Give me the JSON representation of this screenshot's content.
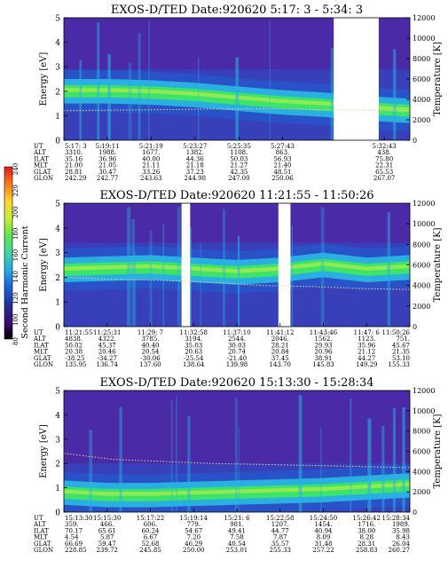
{
  "cbar": {
    "label": "Second Harmonic Current",
    "ticks": [
      "240",
      "220",
      "200",
      "180",
      "160",
      "140",
      "120",
      "100",
      "80"
    ],
    "colors": [
      "#000000",
      "#3b0f70",
      "#1f2f9c",
      "#1a64d8",
      "#22a9e6",
      "#3fd6a3",
      "#58e84e",
      "#c9ee34",
      "#ffd52e",
      "#ff7a1a",
      "#e21b1b"
    ]
  },
  "palette": {
    "background": "#4a2aa6",
    "blue": "#2a52c8",
    "cyan": "#2ab0e0",
    "green": "#3ee36a",
    "yellow": "#d6f03c",
    "gap": "#ffffff",
    "dotted": "#f0c9a0"
  },
  "chart_data": [
    {
      "type": "heatmap",
      "title": "EXOS-D/TED   Date:920620  5:17: 3 - 5:34: 3",
      "ylabel": "Energy [eV]",
      "y2label": "Temperature [K]",
      "ylim": [
        0,
        5
      ],
      "y2lim": [
        0,
        12000
      ],
      "yticks": [
        "0",
        "1",
        "2",
        "3",
        "4",
        "5"
      ],
      "y2ticks": [
        "0",
        "2000",
        "4000",
        "6000",
        "8000",
        "10000",
        "12000"
      ],
      "band_center_ev": [
        2.0,
        2.0,
        1.95,
        1.85,
        1.7,
        1.55,
        1.45,
        1.3,
        1.2
      ],
      "data_gaps": [
        [
          0.78,
          0.91
        ]
      ],
      "temperature_k": [
        2900,
        2950,
        3000,
        3050,
        3100,
        3000,
        2950,
        2800
      ],
      "orbit_labels": [
        "UT",
        "ALT",
        "ILAT",
        "MLT",
        "GLAT",
        "GLON"
      ],
      "orbit_ticks": [
        [
          "5:17: 3",
          "3310.",
          "35.16",
          "21.00",
          "28.81",
          "242.29"
        ],
        [
          "5:19:11",
          "1988.",
          "36.96",
          "21.05",
          "30.47",
          "242.77"
        ],
        [
          "5:21:19",
          "1677.",
          "40.00",
          "21.11",
          "33.26",
          "243.63"
        ],
        [
          "5:23:27",
          "1382.",
          "44.36",
          "21.18",
          "37.23",
          "244.98"
        ],
        [
          "5:25:35",
          "1108.",
          "50.03",
          "21.27",
          "42.35",
          "247.00"
        ],
        [
          "5:27:43",
          "863.",
          "56.93",
          "21.40",
          "48.51",
          "250.06"
        ],
        [
          "5:32:43",
          "438.",
          "75.80",
          "22.31",
          "65.53",
          "267.07"
        ]
      ]
    },
    {
      "type": "heatmap",
      "title": "EXOS-D/TED   Date:920620  11:21:55 - 11:50:26",
      "ylabel": "Energy [eV]",
      "y2label": "Temperature [K]",
      "ylim": [
        0,
        5
      ],
      "y2lim": [
        0,
        12000
      ],
      "yticks": [
        "0",
        "1",
        "2",
        "3",
        "4",
        "5"
      ],
      "y2ticks": [
        "0",
        "2000",
        "4000",
        "6000",
        "8000",
        "10000",
        "12000"
      ],
      "band_center_ev": [
        2.3,
        2.35,
        2.4,
        2.3,
        2.2,
        2.3,
        2.5,
        2.3,
        2.4
      ],
      "data_gaps": [
        [
          0.34,
          0.365
        ],
        [
          0.62,
          0.655
        ]
      ],
      "temperature_k": [
        4800,
        4600,
        4500,
        4300,
        4000,
        3900,
        3700,
        3600
      ],
      "orbit_labels": [
        "UT",
        "ALT",
        "ILAT",
        "MLT",
        "GLAT",
        "GLON"
      ],
      "orbit_ticks": [
        [
          "11:21:55",
          "4838.",
          "50.02",
          "20.38",
          "-38.25",
          "135.95"
        ],
        [
          "11:25:31",
          "4322.",
          "45.37",
          "20.46",
          "-34.27",
          "136.74"
        ],
        [
          "11:29: 7",
          "3785.",
          "40.40",
          "20.54",
          "-30.06",
          "137.60"
        ],
        [
          "11:32:58",
          "3194.",
          "35.03",
          "20.63",
          "-25.54",
          "138.64"
        ],
        [
          "11:37:10",
          "2544.",
          "30.03",
          "20.74",
          "-21.40",
          "139.98"
        ],
        [
          "11:41:12",
          "2046.",
          "28.21",
          "20.84",
          "37.45",
          "143.70"
        ],
        [
          "11:43:46",
          "1562.",
          "29.93",
          "20.96",
          "38.91",
          "145.83"
        ],
        [
          "11:47: 6",
          "1123.",
          "35.96",
          "21.12",
          "44.27",
          "149.29"
        ],
        [
          "11:50:26",
          "751.",
          "45.67",
          "21.35",
          "53.10",
          "155.33"
        ]
      ]
    },
    {
      "type": "heatmap",
      "title": "EXOS-D/TED   Date:920620  15:13:30 - 15:28:34",
      "ylabel": "Energy [eV]",
      "y2label": "Temperature [K]",
      "ylim": [
        0,
        5
      ],
      "y2lim": [
        0,
        12000
      ],
      "yticks": [
        "0",
        "1",
        "2",
        "3",
        "4",
        "5"
      ],
      "y2ticks": [
        "0",
        "2000",
        "4000",
        "6000",
        "8000",
        "10000",
        "12000"
      ],
      "band_center_ev": [
        0.8,
        0.7,
        0.7,
        0.75,
        0.8,
        0.85,
        0.9,
        1.0,
        1.1
      ],
      "data_gaps": [],
      "temperature_k": [
        5800,
        5200,
        5000,
        4800,
        4700,
        4600,
        4500,
        4400
      ],
      "orbit_labels": [
        "UT",
        "ALT",
        "ILAT",
        "MLT",
        "GLAT",
        "GLON"
      ],
      "orbit_ticks": [
        [
          "15:13:30",
          "359.",
          "70.17",
          "4.54",
          "66.69",
          "228.85"
        ],
        [
          "15:15:30",
          "466.",
          "65.61",
          "5.87",
          "59.47",
          "239.72"
        ],
        [
          "15:17:22",
          "606.",
          "60.24",
          "6.67",
          "52.68",
          "245.85"
        ],
        [
          "15:19:14",
          "779.",
          "54.67",
          "7.20",
          "46.29",
          "250.00"
        ],
        [
          "15:21: 6",
          "981.",
          "49.41",
          "7.58",
          "40.54",
          "253.01"
        ],
        [
          "15:22:58",
          "1207.",
          "44.77",
          "7.87",
          "35.57",
          "255.33"
        ],
        [
          "15:24:50",
          "1454.",
          "40.94",
          "8.09",
          "31.48",
          "257.22"
        ],
        [
          "15:26:42",
          "1716.",
          "38.00",
          "8.28",
          "28.31",
          "258.83"
        ],
        [
          "15:28:34",
          "1989.",
          "35.98",
          "8.43",
          "26.04",
          "260.27"
        ]
      ]
    }
  ]
}
